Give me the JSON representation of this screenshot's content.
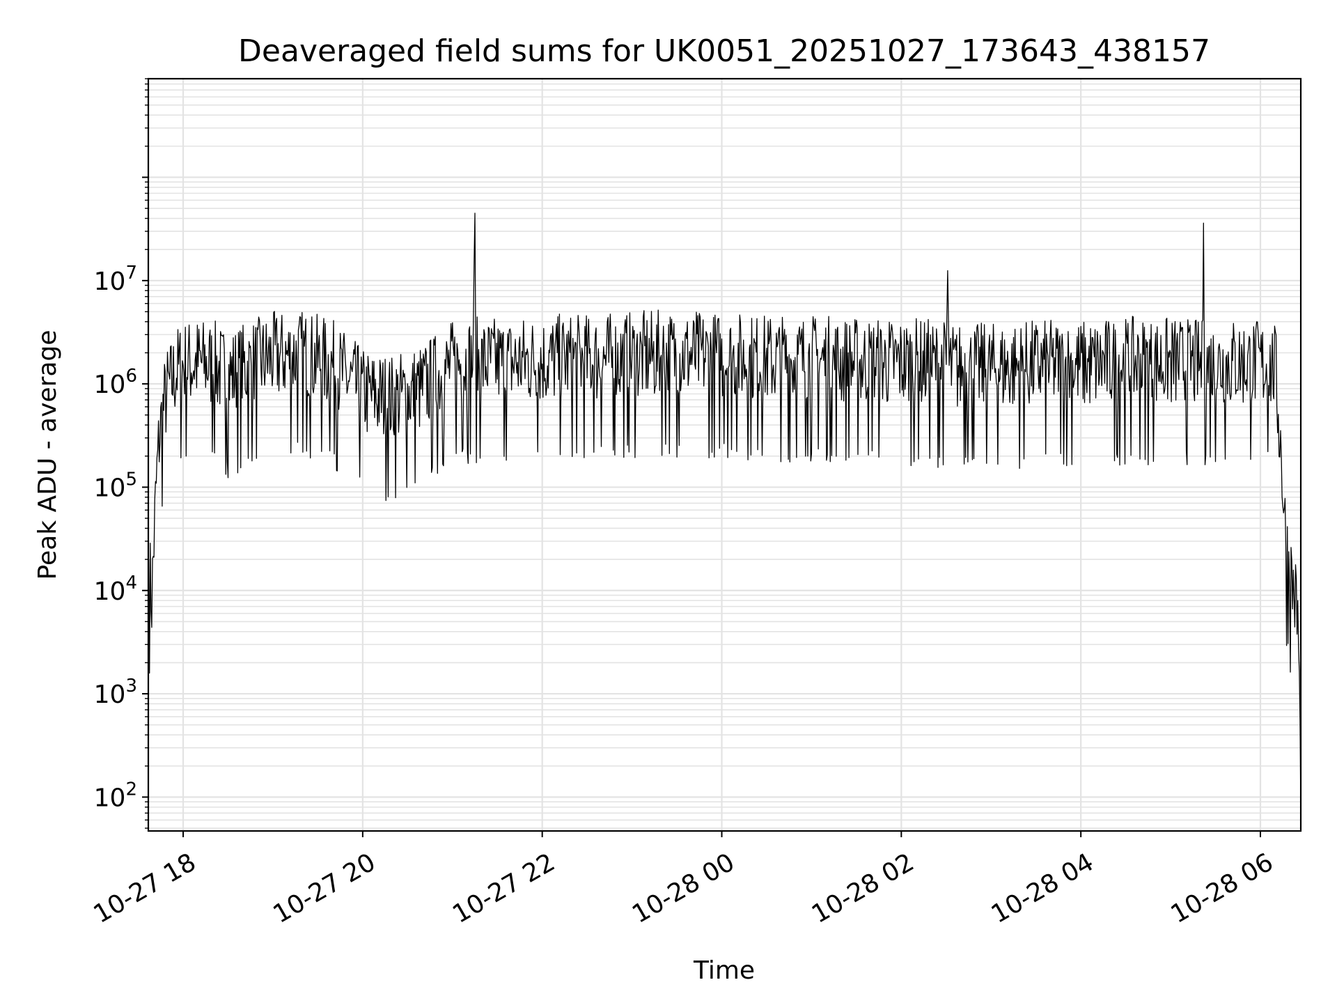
{
  "chart_data": {
    "type": "line",
    "title": "Deaveraged field sums for UK0051_20251027_173643_438157",
    "xlabel": "Time",
    "ylabel": "Peak ADU - average",
    "yscale": "log",
    "ylim": [
      47,
      900000000
    ],
    "xlim": [
      "2025-10-27 17:36:43",
      "2025-10-28 06:27:00"
    ],
    "grid": true,
    "line_color": "#000000",
    "grid_color": "#e3e3e3",
    "y_ticks": [
      {
        "value": 100,
        "base": "10",
        "exp": "2"
      },
      {
        "value": 1000,
        "base": "10",
        "exp": "3"
      },
      {
        "value": 10000,
        "base": "10",
        "exp": "4"
      },
      {
        "value": 100000,
        "base": "10",
        "exp": "5"
      },
      {
        "value": 1000000,
        "base": "10",
        "exp": "6"
      },
      {
        "value": 10000000,
        "base": "10",
        "exp": "7"
      }
    ],
    "x_ticks": [
      {
        "value": "2025-10-27 18:00",
        "label": "10-27 18"
      },
      {
        "value": "2025-10-27 20:00",
        "label": "10-27 20"
      },
      {
        "value": "2025-10-27 22:00",
        "label": "10-27 22"
      },
      {
        "value": "2025-10-28 00:00",
        "label": "10-28 00"
      },
      {
        "value": "2025-10-28 02:00",
        "label": "10-28 02"
      },
      {
        "value": "2025-10-28 04:00",
        "label": "10-28 04"
      },
      {
        "value": "2025-10-28 06:00",
        "label": "10-28 06"
      }
    ],
    "series": [
      {
        "x": [
          "2025-10-27 17:37",
          "2025-10-27 17:38",
          "2025-10-27 17:39",
          "2025-10-27 17:40",
          "2025-10-27 17:42",
          "2025-10-27 17:44",
          "2025-10-27 17:46",
          "2025-10-27 17:48",
          "2025-10-27 17:50",
          "2025-10-27 17:52",
          "2025-10-27 17:55",
          "2025-10-27 18:00",
          "2025-10-27 18:10",
          "2025-10-27 18:20",
          "2025-10-27 18:30",
          "2025-10-27 18:40",
          "2025-10-27 19:00",
          "2025-10-27 19:20",
          "2025-10-27 19:40",
          "2025-10-27 20:00",
          "2025-10-27 20:20",
          "2025-10-27 20:40",
          "2025-10-27 21:00",
          "2025-10-27 21:14",
          "2025-10-27 21:15",
          "2025-10-27 21:16",
          "2025-10-27 21:40",
          "2025-10-27 22:00",
          "2025-10-27 22:30",
          "2025-10-27 23:00",
          "2025-10-27 23:30",
          "2025-10-28 00:00",
          "2025-10-28 00:30",
          "2025-10-28 01:00",
          "2025-10-28 01:30",
          "2025-10-28 02:00",
          "2025-10-28 02:30",
          "2025-10-28 02:31",
          "2025-10-28 02:32",
          "2025-10-28 03:00",
          "2025-10-28 03:30",
          "2025-10-28 04:00",
          "2025-10-28 04:30",
          "2025-10-28 05:00",
          "2025-10-28 05:21",
          "2025-10-28 05:22",
          "2025-10-28 05:23",
          "2025-10-28 05:45",
          "2025-10-28 06:05",
          "2025-10-28 06:10",
          "2025-10-28 06:14",
          "2025-10-28 06:17",
          "2025-10-28 06:20",
          "2025-10-28 06:23",
          "2025-10-28 06:25",
          "2025-10-28 06:26",
          "2025-10-28 06:27"
        ],
        "y": [
          20000,
          12000,
          8000,
          20000,
          100000,
          300000,
          500000,
          700000,
          900000,
          1000000,
          1300000,
          1500000,
          1600000,
          1500000,
          1200000,
          1400000,
          1800000,
          1900000,
          1500000,
          800000,
          700000,
          900000,
          1500000,
          1700000,
          45000000,
          1600000,
          1600000,
          1700000,
          1700000,
          1800000,
          1900000,
          1800000,
          1700000,
          1700000,
          1600000,
          1600000,
          1500000,
          12500000,
          1400000,
          1400000,
          1500000,
          1500000,
          1600000,
          1600000,
          1500000,
          36000000,
          1500000,
          1600000,
          1500000,
          1400000,
          200000,
          30000,
          15000,
          9000,
          5000,
          1500,
          80
        ],
        "noise": 0.45,
        "samples_per_segment": 40
      }
    ]
  }
}
